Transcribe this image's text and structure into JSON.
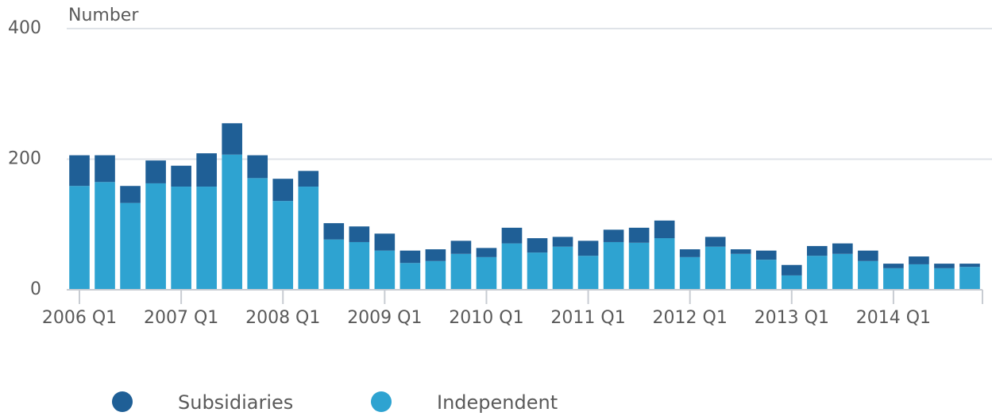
{
  "chart_data": {
    "type": "bar",
    "stacked": true,
    "y_label": "Number",
    "categories": [
      "2006 Q1",
      null,
      null,
      null,
      "2007 Q1",
      null,
      null,
      null,
      "2008 Q1",
      null,
      null,
      null,
      "2009 Q1",
      null,
      null,
      null,
      "2010 Q1",
      null,
      null,
      null,
      "2011 Q1",
      null,
      null,
      null,
      "2012 Q1",
      null,
      null,
      null,
      "2013 Q1",
      null,
      null,
      null,
      "2014 Q1",
      null,
      null,
      null
    ],
    "series": [
      {
        "name": "Independent",
        "color": "#2ea3d1",
        "values": [
          159,
          165,
          133,
          163,
          158,
          158,
          207,
          171,
          136,
          158,
          77,
          73,
          60,
          41,
          44,
          55,
          50,
          71,
          57,
          66,
          52,
          73,
          72,
          79,
          50,
          66,
          55,
          46,
          22,
          52,
          55,
          44,
          33,
          39,
          33,
          35
        ]
      },
      {
        "name": "Subsidiaries",
        "color": "#1f5f96",
        "values": [
          47,
          41,
          26,
          35,
          32,
          51,
          48,
          35,
          34,
          24,
          25,
          24,
          26,
          19,
          18,
          20,
          14,
          24,
          22,
          15,
          23,
          19,
          23,
          27,
          12,
          15,
          7,
          14,
          16,
          15,
          16,
          16,
          7,
          12,
          7,
          5
        ]
      }
    ],
    "legend_order": [
      1,
      0
    ],
    "ylim": [
      0,
      400
    ],
    "yticks": [
      0,
      200,
      400
    ],
    "grid": true
  }
}
